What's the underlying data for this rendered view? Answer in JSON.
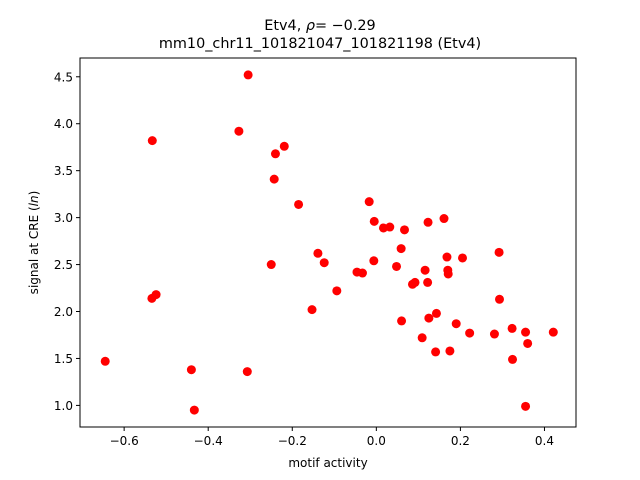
{
  "chart_data": {
    "type": "scatter",
    "title_line1": "Etv4, ",
    "title_rho": "ρ",
    "title_eq": "= −0.29",
    "title_line2": "mm10_chr11_101821047_101821198 (Etv4)",
    "xlabel": "motif activity",
    "ylabel_prefix": "signal at CRE (",
    "ylabel_italic": "ln",
    "ylabel_suffix": ")",
    "xlim": [
      -0.705,
      0.475
    ],
    "ylim": [
      0.77,
      4.7
    ],
    "xticks": [
      -0.6,
      -0.4,
      -0.2,
      0.0,
      0.2,
      0.4
    ],
    "xtick_labels": [
      "−0.6",
      "−0.4",
      "−0.2",
      "0.0",
      "0.2",
      "0.4"
    ],
    "yticks": [
      1.0,
      1.5,
      2.0,
      2.5,
      3.0,
      3.5,
      4.0,
      4.5
    ],
    "ytick_labels": [
      "1.0",
      "1.5",
      "2.0",
      "2.5",
      "3.0",
      "3.5",
      "4.0",
      "4.5"
    ],
    "grid": false,
    "marker_color": "#ff0000",
    "points": [
      {
        "x": -0.645,
        "y": 1.47
      },
      {
        "x": -0.44,
        "y": 1.38
      },
      {
        "x": -0.433,
        "y": 0.95
      },
      {
        "x": -0.533,
        "y": 3.82
      },
      {
        "x": -0.534,
        "y": 2.14
      },
      {
        "x": -0.524,
        "y": 2.18
      },
      {
        "x": -0.327,
        "y": 3.92
      },
      {
        "x": -0.305,
        "y": 4.52
      },
      {
        "x": -0.307,
        "y": 1.36
      },
      {
        "x": -0.24,
        "y": 3.68
      },
      {
        "x": -0.219,
        "y": 3.76
      },
      {
        "x": -0.243,
        "y": 3.41
      },
      {
        "x": -0.25,
        "y": 2.5
      },
      {
        "x": -0.185,
        "y": 3.14
      },
      {
        "x": -0.139,
        "y": 2.62
      },
      {
        "x": -0.124,
        "y": 2.52
      },
      {
        "x": -0.153,
        "y": 2.02
      },
      {
        "x": -0.094,
        "y": 2.22
      },
      {
        "x": -0.046,
        "y": 2.42
      },
      {
        "x": -0.033,
        "y": 2.41
      },
      {
        "x": -0.017,
        "y": 3.17
      },
      {
        "x": -0.005,
        "y": 2.96
      },
      {
        "x": -0.006,
        "y": 2.54
      },
      {
        "x": 0.017,
        "y": 2.89
      },
      {
        "x": 0.032,
        "y": 2.9
      },
      {
        "x": 0.067,
        "y": 2.87
      },
      {
        "x": 0.048,
        "y": 2.48
      },
      {
        "x": 0.059,
        "y": 2.67
      },
      {
        "x": 0.06,
        "y": 1.9
      },
      {
        "x": 0.086,
        "y": 2.29
      },
      {
        "x": 0.092,
        "y": 2.31
      },
      {
        "x": 0.109,
        "y": 1.72
      },
      {
        "x": 0.116,
        "y": 2.44
      },
      {
        "x": 0.122,
        "y": 2.31
      },
      {
        "x": 0.123,
        "y": 2.95
      },
      {
        "x": 0.125,
        "y": 1.93
      },
      {
        "x": 0.143,
        "y": 1.98
      },
      {
        "x": 0.141,
        "y": 1.57
      },
      {
        "x": 0.161,
        "y": 2.99
      },
      {
        "x": 0.168,
        "y": 2.58
      },
      {
        "x": 0.17,
        "y": 2.44
      },
      {
        "x": 0.171,
        "y": 2.4
      },
      {
        "x": 0.175,
        "y": 1.58
      },
      {
        "x": 0.19,
        "y": 1.87
      },
      {
        "x": 0.205,
        "y": 2.57
      },
      {
        "x": 0.222,
        "y": 1.77
      },
      {
        "x": 0.281,
        "y": 1.76
      },
      {
        "x": 0.292,
        "y": 2.63
      },
      {
        "x": 0.293,
        "y": 2.13
      },
      {
        "x": 0.323,
        "y": 1.82
      },
      {
        "x": 0.324,
        "y": 1.49
      },
      {
        "x": 0.355,
        "y": 1.78
      },
      {
        "x": 0.36,
        "y": 1.66
      },
      {
        "x": 0.355,
        "y": 0.99
      },
      {
        "x": 0.421,
        "y": 1.78
      }
    ]
  }
}
